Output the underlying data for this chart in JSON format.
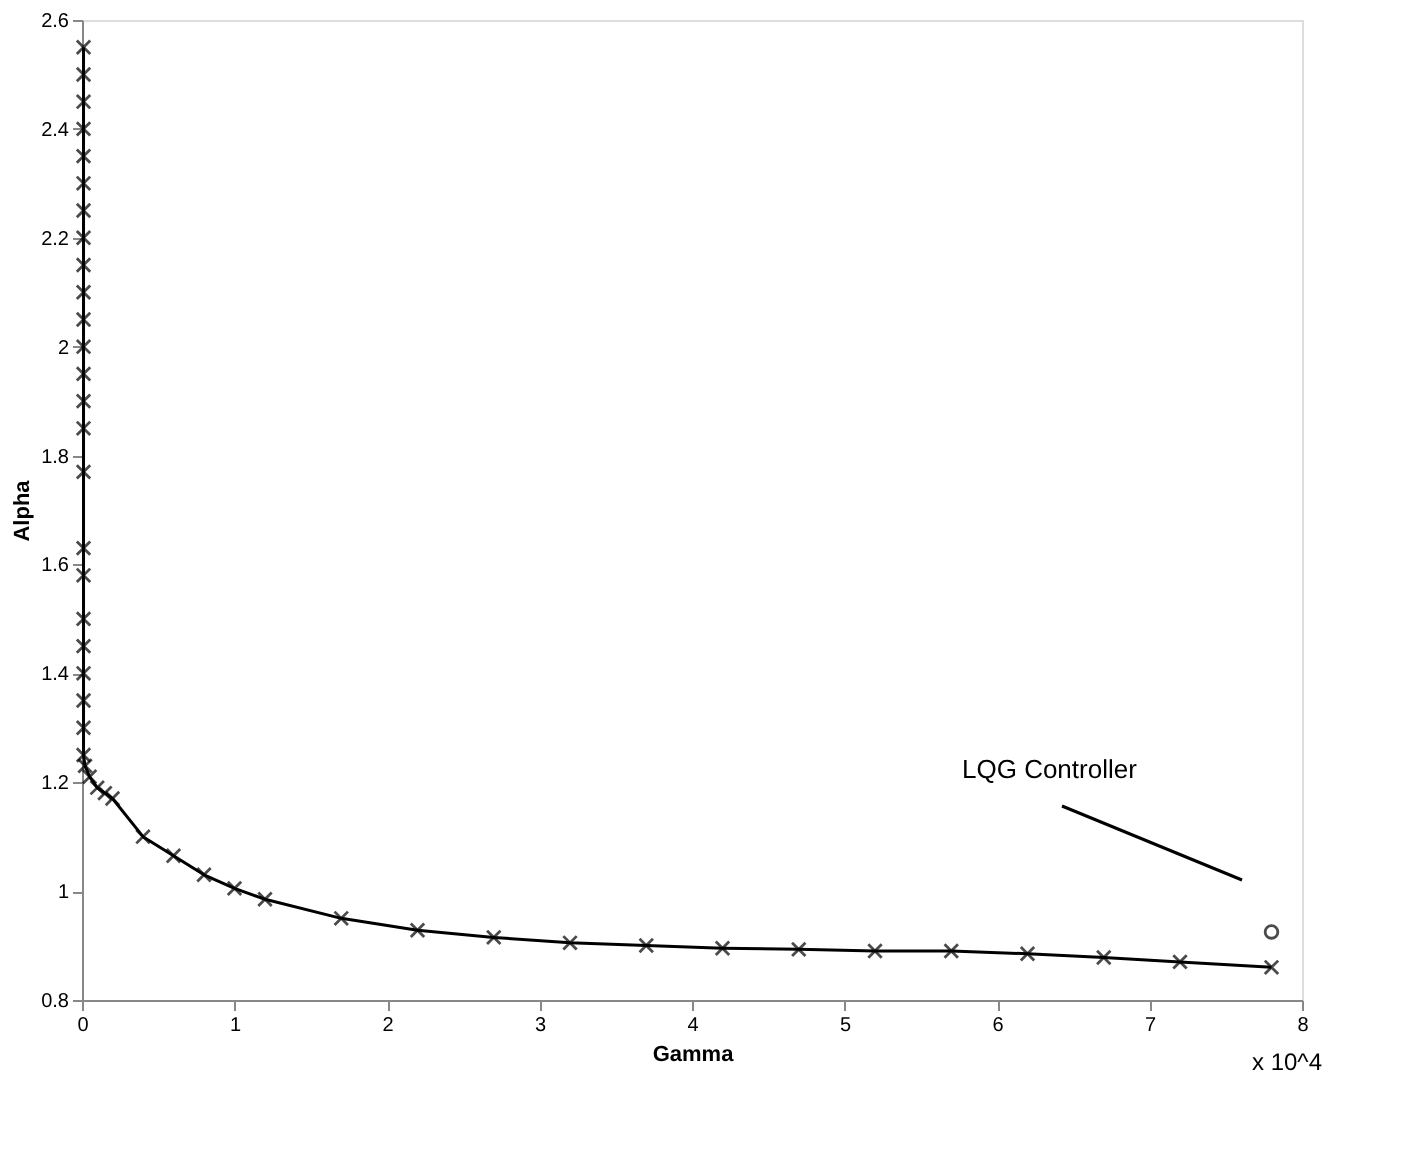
{
  "chart_data": {
    "type": "line",
    "xlabel": "Gamma",
    "ylabel": "Alpha",
    "xlim": [
      0,
      8
    ],
    "xticks": [
      0,
      1,
      2,
      3,
      4,
      5,
      6,
      7,
      8
    ],
    "ylim": [
      0.8,
      2.6
    ],
    "yticks": [
      0.8,
      1,
      1.2,
      1.4,
      1.6,
      1.8,
      2,
      2.2,
      2.4,
      2.6
    ],
    "grid": false,
    "series": [
      {
        "color": "#000000",
        "marker": "cross",
        "line_style": "solid",
        "x": [
          0.01,
          0.01,
          0.01,
          0.01,
          0.01,
          0.01,
          0.01,
          0.01,
          0.01,
          0.01,
          0.01,
          0.01,
          0.01,
          0.01,
          0.01,
          0.01,
          0.01,
          0.01,
          0.01,
          0.01,
          0.01,
          0.01,
          0.01,
          0.01,
          0.02,
          0.05,
          0.1,
          0.15,
          0.2,
          0.4,
          0.6,
          0.8,
          1.0,
          1.2,
          1.7,
          2.2,
          2.7,
          3.2,
          3.7,
          4.2,
          4.7,
          5.2,
          5.7,
          6.2,
          6.7,
          7.2,
          7.8
        ],
        "values": [
          2.55,
          2.5,
          2.45,
          2.4,
          2.35,
          2.3,
          2.25,
          2.2,
          2.15,
          2.1,
          2.05,
          2.0,
          1.95,
          1.9,
          1.85,
          1.77,
          1.63,
          1.58,
          1.5,
          1.45,
          1.4,
          1.35,
          1.3,
          1.25,
          1.23,
          1.21,
          1.19,
          1.18,
          1.17,
          1.1,
          1.065,
          1.03,
          1.005,
          0.985,
          0.95,
          0.928,
          0.915,
          0.905,
          0.9,
          0.895,
          0.893,
          0.89,
          0.89,
          0.885,
          0.878,
          0.87,
          0.86
        ]
      },
      {
        "type": "scatter",
        "color": "#000000",
        "marker": "circle",
        "x": [
          7.8
        ],
        "values": [
          0.925
        ]
      }
    ],
    "annotations": [
      "LQG Controller",
      "x 10^4"
    ]
  }
}
